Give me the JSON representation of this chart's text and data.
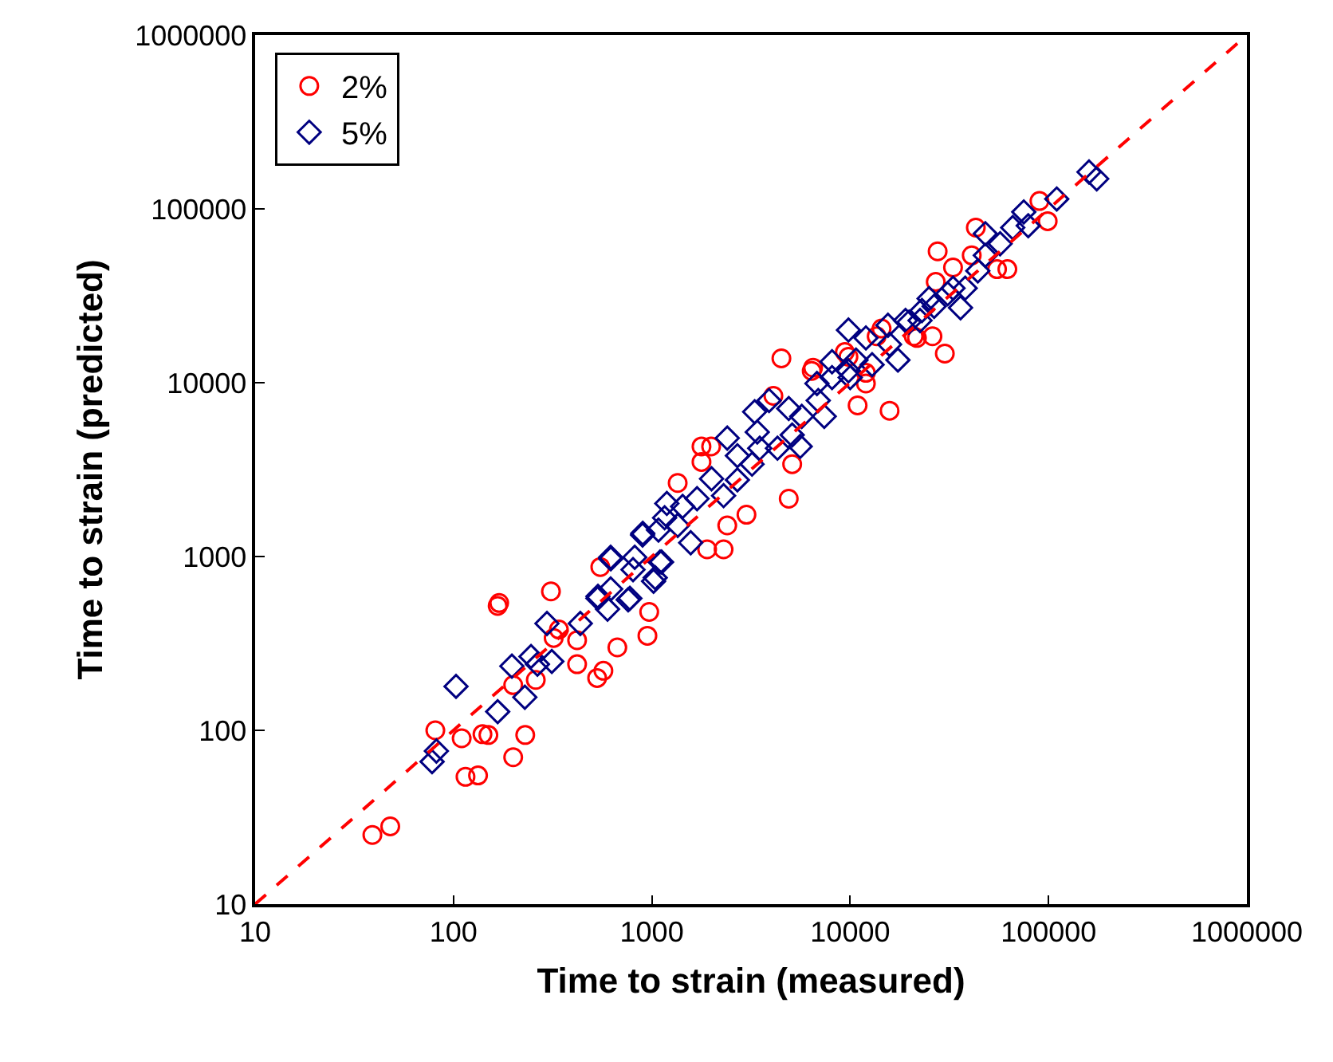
{
  "chart_data": {
    "type": "scatter",
    "xlabel": "Time to strain (measured)",
    "ylabel": "Time to strain (predicted)",
    "log": "xy",
    "grid": false,
    "legend": "top left",
    "xlim": [
      10,
      1000000
    ],
    "xticks": [
      10,
      100,
      1000,
      10000,
      100000,
      1000000
    ],
    "ylim": [
      10,
      1000000
    ],
    "yticks": [
      10,
      100,
      1000,
      10000,
      100000,
      1000000
    ],
    "series": [
      {
        "name": "2%",
        "marker": "circle",
        "color": "#ff0000",
        "x": [
          39,
          48,
          81,
          110,
          140,
          150,
          230,
          200,
          115,
          133,
          167,
          170,
          310,
          970,
          950,
          670,
          570,
          530,
          420,
          420,
          340,
          320,
          260,
          200,
          4500,
          6400,
          15800,
          10900,
          12000,
          4900,
          5100,
          2400,
          3000,
          2300,
          1900,
          1350,
          1780,
          1990,
          1780,
          550,
          4100,
          20900,
          13600,
          9400,
          90000,
          99000,
          43000,
          27600,
          62000,
          55000,
          33000,
          41000,
          27000,
          26000,
          30000,
          6500,
          14400,
          9800,
          12000,
          21700
        ],
        "values": [
          25,
          28,
          100,
          90,
          95,
          94,
          94,
          70,
          54,
          55,
          520,
          540,
          630,
          480,
          350,
          300,
          220,
          200,
          240,
          330,
          380,
          340,
          195,
          182,
          13800,
          11700,
          6900,
          7400,
          9900,
          2150,
          3400,
          1510,
          1740,
          1100,
          1100,
          2650,
          3500,
          4300,
          4300,
          870,
          8400,
          18500,
          18500,
          15000,
          111000,
          85000,
          78000,
          57000,
          45000,
          45000,
          46000,
          54000,
          38000,
          18500,
          14700,
          12200,
          20500,
          14100,
          11400,
          18100
        ]
      },
      {
        "name": "5%",
        "marker": "diamond",
        "color": "#000080",
        "x": [
          78,
          82,
          103,
          167,
          229,
          197,
          246,
          265,
          296,
          313,
          436,
          535,
          621,
          598,
          760,
          804,
          898,
          1040,
          1100,
          9800,
          12000,
          15500,
          19800,
          17400,
          8100,
          9800,
          8100,
          6800,
          3300,
          3900,
          4900,
          5700,
          6900,
          7400,
          2400,
          3400,
          4300,
          5100,
          5600,
          3500,
          2700,
          3200,
          2000,
          2300,
          2700,
          1690,
          1430,
          1190,
          1160,
          1350,
          1570,
          900,
          1080,
          620,
          820,
          1120,
          1020,
          535,
          775,
          620,
          160000,
          175000,
          110000,
          75000,
          79000,
          66000,
          48000,
          57000,
          48000,
          44000,
          33000,
          31000,
          38000,
          36000,
          26500,
          25000,
          23000,
          22500,
          19000,
          15800,
          10700,
          12900,
          10000
        ],
        "values": [
          66,
          76,
          179,
          128,
          155,
          234,
          266,
          240,
          412,
          249,
          412,
          575,
          970,
          498,
          564,
          840,
          1330,
          755,
          930,
          20100,
          18100,
          21400,
          22300,
          13500,
          13200,
          11700,
          10700,
          9900,
          6800,
          7900,
          7100,
          6400,
          7900,
          6400,
          4800,
          5200,
          4200,
          5000,
          4300,
          4200,
          3800,
          3400,
          2800,
          2240,
          2760,
          2150,
          1940,
          2020,
          1670,
          1510,
          1200,
          1360,
          1420,
          990,
          990,
          930,
          720,
          590,
          575,
          650,
          163000,
          149000,
          114000,
          96000,
          80000,
          78000,
          72000,
          63000,
          54000,
          44000,
          35000,
          32500,
          35000,
          27000,
          27500,
          30500,
          26000,
          22800,
          22800,
          16600,
          13500,
          12700,
          10700
        ]
      },
      {
        "type": "line",
        "line_style": "dashed",
        "color": "#ff0000",
        "x": [
          10,
          1000000
        ],
        "values": [
          10,
          1000000
        ]
      }
    ]
  }
}
